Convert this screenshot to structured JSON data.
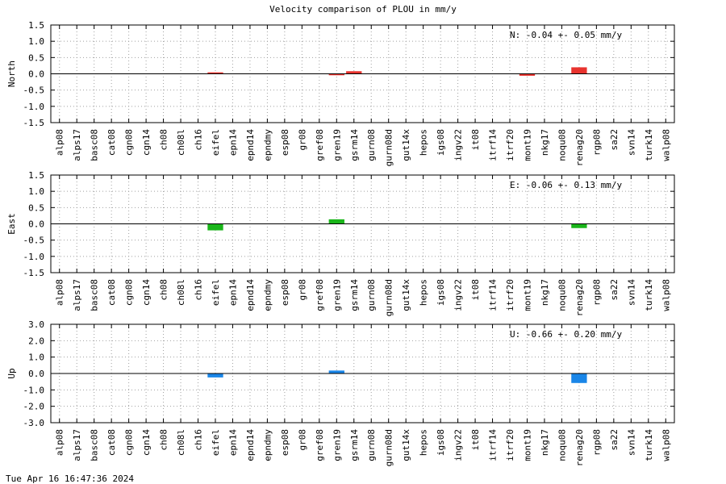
{
  "title": "Velocity comparison of PLOU in mm/y",
  "footer": "Tue Apr 16 16:47:36 2024",
  "chart_data": [
    {
      "type": "bar",
      "ylabel": "North",
      "ylim": [
        -1.5,
        1.5
      ],
      "yticks": [
        1.5,
        1.0,
        0.5,
        0.0,
        -0.5,
        -1.0,
        -1.5
      ],
      "grid": true,
      "color": "#e8332e",
      "annotation": "N:  -0.04 +-  0.05 mm/y",
      "categories": [
        "alp08",
        "alps17",
        "basc08",
        "cat08",
        "cgn08",
        "cgn14",
        "ch08",
        "ch08l",
        "ch16",
        "eifel",
        "epn14",
        "epnd14",
        "epndmy",
        "esp08",
        "gr08",
        "gref08",
        "gren19",
        "gsrm14",
        "gurn08",
        "gurn08d",
        "gut14x",
        "hepos",
        "igs08",
        "ingv22",
        "it08",
        "itrf14",
        "itrf20",
        "mont19",
        "nkg17",
        "noqu08",
        "renag20",
        "rgp08",
        "sa22",
        "svn14",
        "turk14",
        "walp08"
      ],
      "values": [
        null,
        null,
        null,
        null,
        null,
        null,
        null,
        null,
        null,
        0.02,
        null,
        null,
        null,
        null,
        null,
        null,
        -0.02,
        0.08,
        null,
        null,
        null,
        null,
        null,
        null,
        null,
        null,
        null,
        -0.06,
        null,
        null,
        0.2,
        null,
        null,
        null,
        null,
        null
      ]
    },
    {
      "type": "bar",
      "ylabel": "East",
      "ylim": [
        -1.5,
        1.5
      ],
      "yticks": [
        1.5,
        1.0,
        0.5,
        0.0,
        -0.5,
        -1.0,
        -1.5
      ],
      "grid": true,
      "color": "#1ab51a",
      "annotation": "E:  -0.06 +-  0.13 mm/y",
      "categories": [
        "alp08",
        "alps17",
        "basc08",
        "cat08",
        "cgn08",
        "cgn14",
        "ch08",
        "ch08l",
        "ch16",
        "eifel",
        "epn14",
        "epnd14",
        "epndmy",
        "esp08",
        "gr08",
        "gref08",
        "gren19",
        "gsrm14",
        "gurn08",
        "gurn08d",
        "gut14x",
        "hepos",
        "igs08",
        "ingv22",
        "it08",
        "itrf14",
        "itrf20",
        "mont19",
        "nkg17",
        "noqu08",
        "renag20",
        "rgp08",
        "sa22",
        "svn14",
        "turk14",
        "walp08"
      ],
      "values": [
        null,
        null,
        null,
        null,
        null,
        null,
        null,
        null,
        null,
        -0.2,
        null,
        null,
        null,
        null,
        null,
        null,
        0.14,
        null,
        null,
        null,
        null,
        null,
        null,
        null,
        null,
        null,
        null,
        null,
        null,
        null,
        -0.13,
        null,
        null,
        null,
        null,
        null
      ]
    },
    {
      "type": "bar",
      "ylabel": "Up",
      "ylim": [
        -3.0,
        3.0
      ],
      "yticks": [
        3.0,
        2.0,
        1.0,
        0.0,
        -1.0,
        -2.0,
        -3.0
      ],
      "grid": true,
      "color": "#1a86e8",
      "annotation": "U:  -0.66 +-  0.20 mm/y",
      "categories": [
        "alp08",
        "alps17",
        "basc08",
        "cat08",
        "cgn08",
        "cgn14",
        "ch08",
        "ch08l",
        "ch16",
        "eifel",
        "epn14",
        "epnd14",
        "epndmy",
        "esp08",
        "gr08",
        "gref08",
        "gren19",
        "gsrm14",
        "gurn08",
        "gurn08d",
        "gut14x",
        "hepos",
        "igs08",
        "ingv22",
        "it08",
        "itrf14",
        "itrf20",
        "mont19",
        "nkg17",
        "noqu08",
        "renag20",
        "rgp08",
        "sa22",
        "svn14",
        "turk14",
        "walp08"
      ],
      "values": [
        null,
        null,
        null,
        null,
        null,
        null,
        null,
        null,
        null,
        -0.24,
        null,
        null,
        null,
        null,
        null,
        null,
        0.18,
        null,
        null,
        null,
        null,
        null,
        null,
        null,
        null,
        null,
        null,
        null,
        null,
        null,
        -0.58,
        null,
        null,
        null,
        null,
        null
      ]
    }
  ]
}
